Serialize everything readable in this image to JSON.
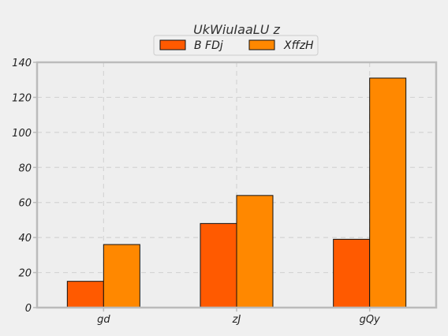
{
  "chart_data": {
    "type": "bar",
    "title": "UkWiuIaaLU z",
    "categories": [
      "gd",
      "zJ",
      "gQy"
    ],
    "series": [
      {
        "name": "B FDj",
        "values": [
          15,
          48,
          39
        ],
        "color": "#ff5a00"
      },
      {
        "name": "XffzH",
        "values": [
          36,
          64,
          131
        ],
        "color": "#ff8800"
      }
    ],
    "xlabel": "",
    "ylabel": "",
    "ylim": [
      0,
      140
    ],
    "yticks": [
      0,
      20,
      40,
      60,
      80,
      100,
      120,
      140
    ],
    "grid": true,
    "legend_position": "top-center",
    "background_color": "#f0f0f0",
    "plot_background_color": "#eeeeee",
    "axis_color": "#bbbbbb",
    "grid_color": "#d4d4d4"
  }
}
